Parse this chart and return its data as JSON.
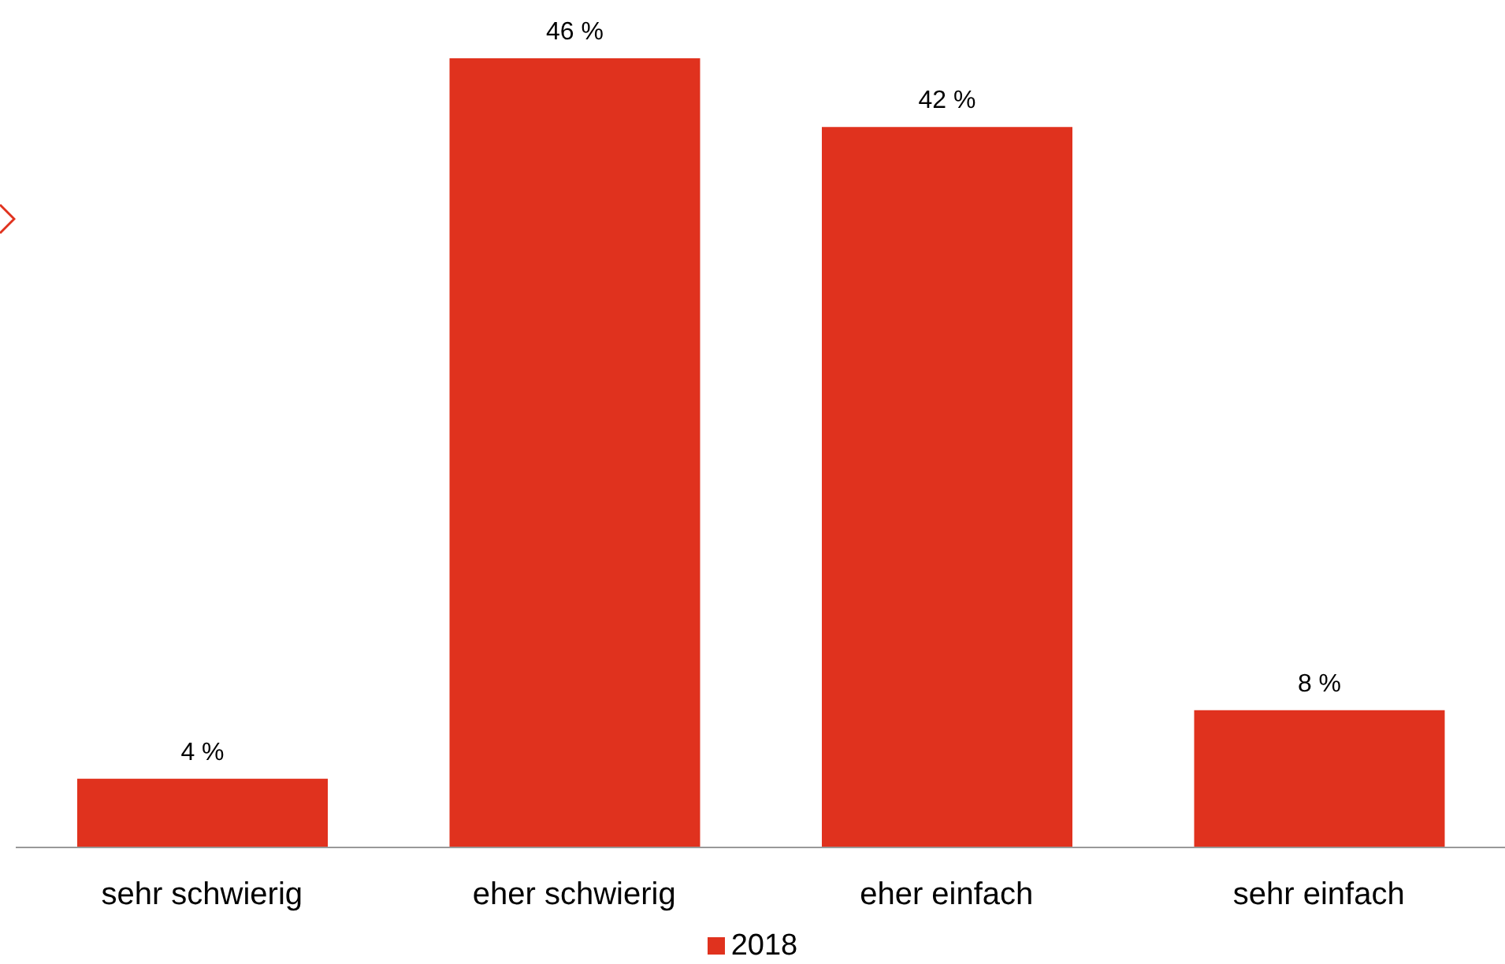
{
  "chart_data": {
    "type": "bar",
    "categories": [
      "sehr schwierig",
      "eher schwierig",
      "eher einfach",
      "sehr einfach"
    ],
    "series": [
      {
        "name": "2018",
        "color": "#e0321e",
        "values": [
          4,
          46,
          42,
          8
        ],
        "value_labels": [
          "4 %",
          "46 %",
          "42 %",
          "8 %"
        ]
      }
    ],
    "legend": "bottom",
    "grid": false
  }
}
